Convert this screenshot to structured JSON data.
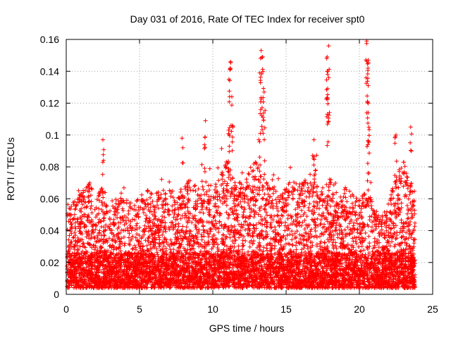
{
  "chart_data": {
    "type": "scatter",
    "title": "Day 031 of 2016, Rate Of TEC Index for receiver spt0",
    "xlabel": "GPS time / hours",
    "ylabel": "ROTI / TECUs",
    "xlim": [
      0,
      25
    ],
    "ylim": [
      0,
      0.16
    ],
    "xticks": [
      "0",
      "5",
      "10",
      "15",
      "20",
      "25"
    ],
    "yticks": [
      "0",
      "0.02",
      "0.04",
      "0.06",
      "0.08",
      "0.1",
      "0.12",
      "0.14",
      "0.16"
    ],
    "grid": true,
    "marker": "+",
    "color": "#ff0000",
    "series": [
      {
        "values_summary": "ROTI values recorded at 30-second cadence from 0 to ~24 h; bulk between 0.005 and 0.06 TECU/min",
        "notable_points": [
          {
            "x": 2.5,
            "y": 0.097
          },
          {
            "x": 9.5,
            "y": 0.109
          },
          {
            "x": 11.2,
            "y": 0.146
          },
          {
            "x": 11.1,
            "y": 0.135
          },
          {
            "x": 11.3,
            "y": 0.124
          },
          {
            "x": 13.3,
            "y": 0.153
          },
          {
            "x": 13.4,
            "y": 0.149
          },
          {
            "x": 13.2,
            "y": 0.139
          },
          {
            "x": 13.5,
            "y": 0.127
          },
          {
            "x": 17.9,
            "y": 0.156
          },
          {
            "x": 17.8,
            "y": 0.149
          },
          {
            "x": 17.8,
            "y": 0.14
          },
          {
            "x": 20.5,
            "y": 0.159
          },
          {
            "x": 20.6,
            "y": 0.147
          },
          {
            "x": 20.6,
            "y": 0.131
          },
          {
            "x": 20.6,
            "y": 0.12
          },
          {
            "x": 23.5,
            "y": 0.105
          },
          {
            "x": 22.5,
            "y": 0.1
          },
          {
            "x": 7.9,
            "y": 0.098
          },
          {
            "x": 16.9,
            "y": 0.097
          }
        ]
      }
    ]
  }
}
